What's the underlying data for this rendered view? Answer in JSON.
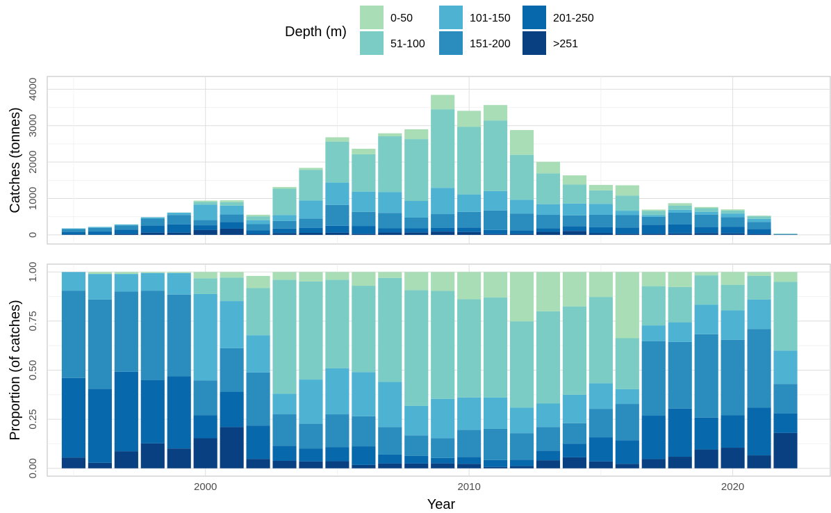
{
  "legend": {
    "title": "Depth (m)",
    "entries": [
      {
        "label": "0-50",
        "color": "#A8DDB5"
      },
      {
        "label": "51-100",
        "color": "#7BCCC4"
      },
      {
        "label": "101-150",
        "color": "#4EB3D3"
      },
      {
        "label": "151-200",
        "color": "#2B8CBE"
      },
      {
        "label": "201-250",
        "color": "#0868AC"
      },
      {
        "label": ">251",
        "color": "#084081"
      }
    ]
  },
  "chart_data": [
    {
      "type": "bar",
      "stacked": true,
      "ylabel": "Catches (tonnes)",
      "xlim": [
        1994.0,
        2023.7
      ],
      "ylim": [
        -250,
        4350
      ],
      "x_ticks": [
        2000,
        2010,
        2020
      ],
      "y_ticks": [
        0,
        1000,
        2000,
        3000,
        4000
      ],
      "grid": true,
      "legend_position": "top",
      "categories": [
        1995,
        1996,
        1997,
        1998,
        1999,
        2000,
        2001,
        2002,
        2003,
        2004,
        2005,
        2006,
        2007,
        2008,
        2009,
        2010,
        2011,
        2012,
        2013,
        2014,
        2015,
        2016,
        2017,
        2018,
        2019,
        2020,
        2021,
        2022
      ],
      "series": [
        {
          "name": ">251",
          "color": "#084081",
          "values": [
            10,
            6,
            25,
            62,
            62,
            133,
            171,
            26,
            49,
            55,
            57,
            31,
            64,
            69,
            91,
            80,
            24,
            32,
            83,
            108,
            46,
            32,
            33,
            41,
            50,
            42,
            25,
            7
          ]
        },
        {
          "name": "201-250",
          "color": "#0868AC",
          "values": [
            72,
            86,
            122,
            192,
            229,
            131,
            179,
            103,
            125,
            135,
            194,
            214,
            116,
            110,
            105,
            123,
            112,
            93,
            98,
            133,
            163,
            169,
            245,
            244,
            166,
            183,
            138,
            5
          ]
        },
        {
          "name": "151-200",
          "color": "#2B8CBE",
          "values": [
            80,
            102,
            113,
            194,
            257,
            143,
            210,
            165,
            208,
            260,
            570,
            386,
            423,
            297,
            374,
            429,
            535,
            462,
            370,
            294,
            343,
            341,
            220,
            324,
            342,
            262,
            190,
            5
          ]
        },
        {
          "name": "101-150",
          "color": "#4EB3D3",
          "values": [
            16,
            24,
            26,
            36,
            64,
            426,
            243,
            110,
            165,
            495,
            616,
            557,
            575,
            457,
            722,
            480,
            533,
            377,
            293,
            326,
            300,
            122,
            46,
            80,
            77,
            100,
            88,
            6
          ]
        },
        {
          "name": "51-100",
          "color": "#7BCCC4",
          "values": [
            0,
            0,
            0,
            0,
            0,
            74,
            97,
            106,
            721,
            840,
            1125,
            1026,
            1530,
            1697,
            2158,
            1855,
            1939,
            1235,
            847,
            525,
            371,
            418,
            118,
            117,
            98,
            84,
            70,
            13
          ]
        },
        {
          "name": "0-50",
          "color": "#A8DDB5",
          "values": [
            0,
            2,
            2,
            1,
            2,
            34,
            50,
            43,
            46,
            55,
            118,
            151,
            82,
            270,
            394,
            440,
            422,
            680,
            317,
            248,
            148,
            280,
            32,
            64,
            32,
            29,
            17,
            2
          ]
        }
      ]
    },
    {
      "type": "bar",
      "stacked": true,
      "normalized": true,
      "xlabel": "Year",
      "ylabel": "Proportion (of catches)",
      "xlim": [
        1994.0,
        2023.7
      ],
      "ylim": [
        -0.04,
        1.04
      ],
      "x_ticks": [
        2000,
        2010,
        2020
      ],
      "y_ticks": [
        0.0,
        0.25,
        0.5,
        0.75,
        1.0
      ],
      "grid": true,
      "categories": [
        1995,
        1996,
        1997,
        1998,
        1999,
        2000,
        2001,
        2002,
        2003,
        2004,
        2005,
        2006,
        2007,
        2008,
        2009,
        2010,
        2011,
        2012,
        2013,
        2014,
        2015,
        2016,
        2017,
        2018,
        2019,
        2020,
        2021,
        2022
      ],
      "series": [
        {
          "name": ">251",
          "color": "#084081",
          "values": [
            0.055,
            0.028,
            0.087,
            0.127,
            0.101,
            0.153,
            0.21,
            0.048,
            0.038,
            0.035,
            0.036,
            0.017,
            0.024,
            0.024,
            0.025,
            0.023,
            0.007,
            0.011,
            0.041,
            0.056,
            0.035,
            0.023,
            0.047,
            0.059,
            0.096,
            0.105,
            0.066,
            0.18
          ]
        },
        {
          "name": "201-250",
          "color": "#0868AC",
          "values": [
            0.405,
            0.377,
            0.405,
            0.323,
            0.367,
            0.118,
            0.18,
            0.17,
            0.077,
            0.065,
            0.071,
            0.095,
            0.046,
            0.039,
            0.028,
            0.035,
            0.035,
            0.033,
            0.049,
            0.069,
            0.123,
            0.12,
            0.221,
            0.245,
            0.162,
            0.165,
            0.244,
            0.1
          ]
        },
        {
          "name": "151-200",
          "color": "#2B8CBE",
          "values": [
            0.445,
            0.455,
            0.408,
            0.455,
            0.417,
            0.177,
            0.222,
            0.27,
            0.16,
            0.127,
            0.168,
            0.153,
            0.14,
            0.105,
            0.101,
            0.138,
            0.159,
            0.135,
            0.12,
            0.105,
            0.145,
            0.185,
            0.38,
            0.34,
            0.425,
            0.385,
            0.4,
            0.15
          ]
        },
        {
          "name": "101-150",
          "color": "#4EB3D3",
          "values": [
            0.095,
            0.13,
            0.09,
            0.09,
            0.11,
            0.44,
            0.24,
            0.19,
            0.105,
            0.225,
            0.235,
            0.225,
            0.23,
            0.15,
            0.2,
            0.165,
            0.16,
            0.13,
            0.12,
            0.145,
            0.13,
            0.075,
            0.08,
            0.1,
            0.15,
            0.15,
            0.15,
            0.17
          ]
        },
        {
          "name": "51-100",
          "color": "#7BCCC4",
          "values": [
            0.0,
            0.0,
            0.0,
            0.0,
            0.0,
            0.08,
            0.12,
            0.24,
            0.58,
            0.5,
            0.45,
            0.44,
            0.53,
            0.59,
            0.55,
            0.5,
            0.51,
            0.44,
            0.47,
            0.45,
            0.44,
            0.26,
            0.2,
            0.18,
            0.15,
            0.13,
            0.12,
            0.35
          ]
        },
        {
          "name": "0-50",
          "color": "#A8DDB5",
          "values": [
            0.0,
            0.01,
            0.01,
            0.005,
            0.005,
            0.032,
            0.028,
            0.062,
            0.04,
            0.048,
            0.04,
            0.07,
            0.03,
            0.092,
            0.096,
            0.139,
            0.129,
            0.251,
            0.2,
            0.175,
            0.127,
            0.337,
            0.072,
            0.076,
            0.017,
            0.065,
            0.02,
            0.05
          ]
        }
      ]
    }
  ]
}
